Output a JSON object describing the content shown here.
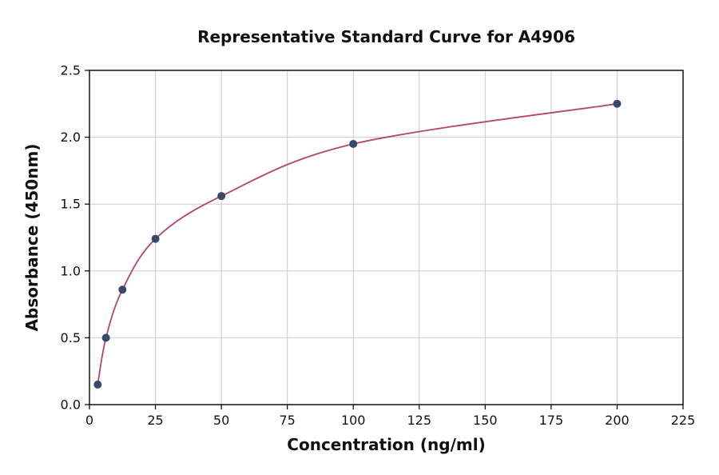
{
  "chart_data": {
    "type": "scatter",
    "title": "Representative Standard Curve for A4906",
    "xlabel": "Concentration (ng/ml)",
    "ylabel": "Absorbance (450nm)",
    "xlim": [
      0,
      225
    ],
    "ylim": [
      0,
      2.5
    ],
    "x_ticks": [
      "0",
      "25",
      "50",
      "75",
      "100",
      "125",
      "150",
      "175",
      "200",
      "225"
    ],
    "y_ticks": [
      "0.0",
      "0.5",
      "1.0",
      "1.5",
      "2.0",
      "2.5"
    ],
    "grid": true,
    "legend": "none",
    "points": [
      {
        "x": 3.125,
        "y": 0.15
      },
      {
        "x": 6.25,
        "y": 0.5
      },
      {
        "x": 12.5,
        "y": 0.86
      },
      {
        "x": 25,
        "y": 1.24
      },
      {
        "x": 50,
        "y": 1.56
      },
      {
        "x": 100,
        "y": 1.95
      },
      {
        "x": 200,
        "y": 2.25
      }
    ],
    "curve_color": "#b5446e",
    "point_color": "#37486b",
    "grid_color": "#cccccc",
    "spine_color": "#000000",
    "text_color": "#111111"
  }
}
